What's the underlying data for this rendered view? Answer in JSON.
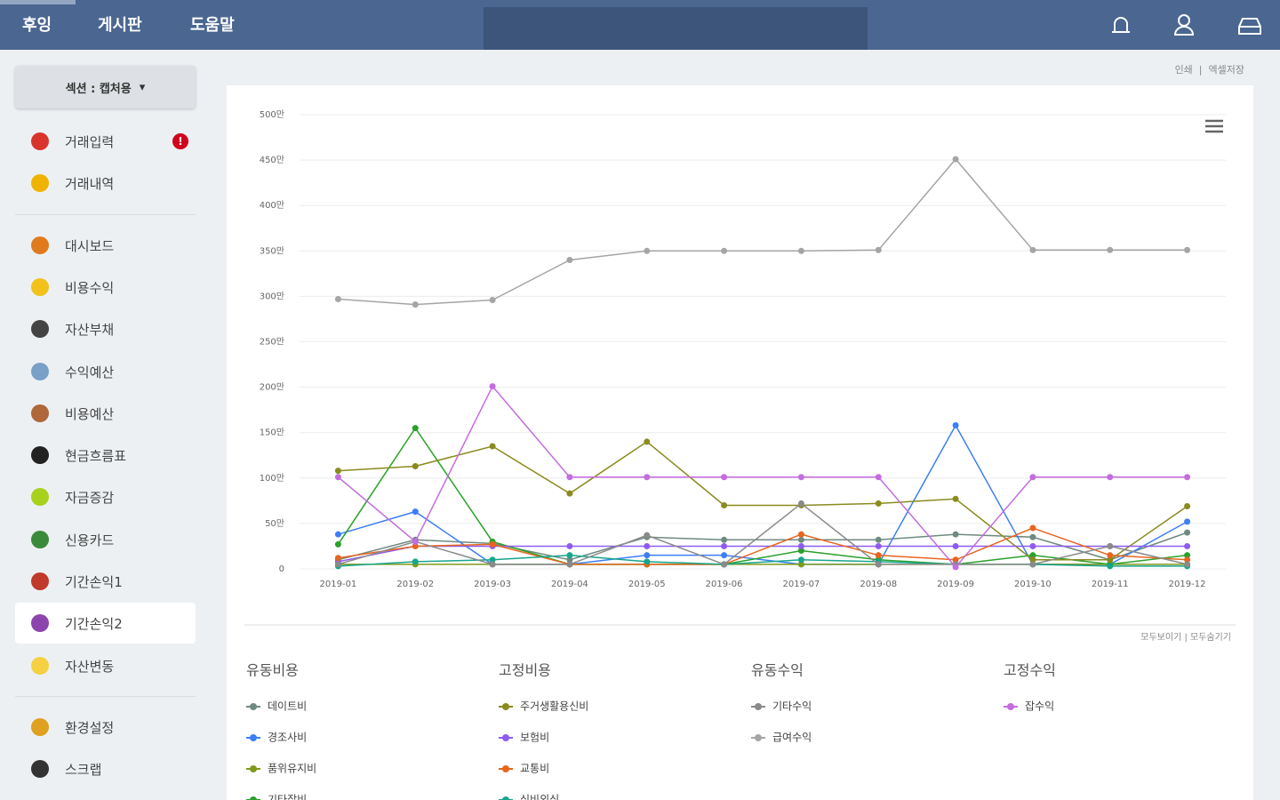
{
  "nav": {
    "items": [
      "후잉",
      "게시판",
      "도움말"
    ]
  },
  "sidebar": {
    "section_button": "섹션 : 캡처용",
    "menu_groups": [
      [
        "거래입력",
        "거래내역"
      ],
      [
        "대시보드",
        "비용수익",
        "자산부채",
        "수익예산",
        "비용예산",
        "현금흐름표",
        "자금증감",
        "신용카드",
        "기간손익1",
        "기간손익2",
        "자산변동"
      ],
      [
        "환경설정",
        "스크랩"
      ]
    ],
    "badge": "!",
    "active": "기간손익2"
  },
  "toolbar": [
    "인쇄",
    "엑셀저장"
  ],
  "legend_actions": [
    "모두보이기",
    "모두숨기기"
  ],
  "chart_data": {
    "type": "line",
    "categories": [
      "2019-01",
      "2019-02",
      "2019-03",
      "2019-04",
      "2019-05",
      "2019-06",
      "2019-07",
      "2019-08",
      "2019-09",
      "2019-10",
      "2019-11",
      "2019-12"
    ],
    "ylim": [
      0,
      500
    ],
    "yticks": [
      0,
      {
        "value": 50,
        "label": "50만"
      },
      {
        "value": 100,
        "label": "100만"
      },
      {
        "value": 150,
        "label": "150만"
      },
      {
        "value": 200,
        "label": "200만"
      },
      {
        "value": 250,
        "label": "250만"
      },
      {
        "value": 300,
        "label": "300만"
      },
      {
        "value": 350,
        "label": "350만"
      },
      {
        "value": 400,
        "label": "400만"
      },
      {
        "value": 450,
        "label": "450만"
      },
      {
        "value": 500,
        "label": "500만"
      }
    ],
    "grid": true,
    "series_groups": [
      {
        "title": "유동비용",
        "series": [
          {
            "name": "데이트비",
            "color": "#6f8a7f",
            "values": [
              10,
              32,
              28,
              10,
              35,
              32,
              32,
              32,
              38,
              35,
              10,
              40
            ]
          },
          {
            "name": "경조사비",
            "color": "#3d7ef5",
            "values": [
              38,
              63,
              5,
              5,
              15,
              15,
              5,
              5,
              158,
              5,
              5,
              52
            ]
          },
          {
            "name": "품위유지비",
            "color": "#7f9a1a",
            "values": [
              5,
              5,
              5,
              5,
              5,
              5,
              5,
              5,
              5,
              5,
              5,
              5
            ]
          },
          {
            "name": "기타잡비",
            "color": "#2aa12a",
            "values": [
              27,
              155,
              30,
              5,
              5,
              5,
              20,
              10,
              5,
              15,
              5,
              15
            ]
          }
        ]
      },
      {
        "title": "고정비용",
        "series": [
          {
            "name": "주거생활용신비",
            "color": "#8a8a1e",
            "values": [
              108,
              113,
              135,
              83,
              140,
              70,
              70,
              72,
              77,
              10,
              10,
              69
            ]
          },
          {
            "name": "보험비",
            "color": "#8e5cf0",
            "values": [
              8,
              25,
              25,
              25,
              25,
              25,
              25,
              25,
              25,
              25,
              25,
              25
            ]
          },
          {
            "name": "교통비",
            "color": "#e8651e",
            "values": [
              12,
              25,
              27,
              5,
              5,
              5,
              38,
              15,
              10,
              45,
              15,
              10
            ]
          },
          {
            "name": "식비외식",
            "color": "#17a58c",
            "values": [
              3,
              8,
              10,
              15,
              8,
              5,
              10,
              8,
              5,
              5,
              3,
              3
            ]
          }
        ]
      },
      {
        "title": "유동수익",
        "series": [
          {
            "name": "기타수익",
            "color": "#8a8a8a",
            "values": [
              5,
              30,
              5,
              5,
              37,
              5,
              72,
              5,
              5,
              5,
              25,
              5
            ]
          },
          {
            "name": "급여수익",
            "color": "#a5a5a5",
            "values": [
              297,
              291,
              296,
              340,
              350,
              350,
              350,
              351,
              451,
              351,
              351,
              351
            ]
          }
        ]
      },
      {
        "title": "고정수익",
        "series": [
          {
            "name": "잡수익",
            "color": "#c46ce0",
            "values": [
              101,
              30,
              201,
              101,
              101,
              101,
              101,
              101,
              2,
              101,
              101,
              101
            ]
          }
        ]
      }
    ]
  }
}
